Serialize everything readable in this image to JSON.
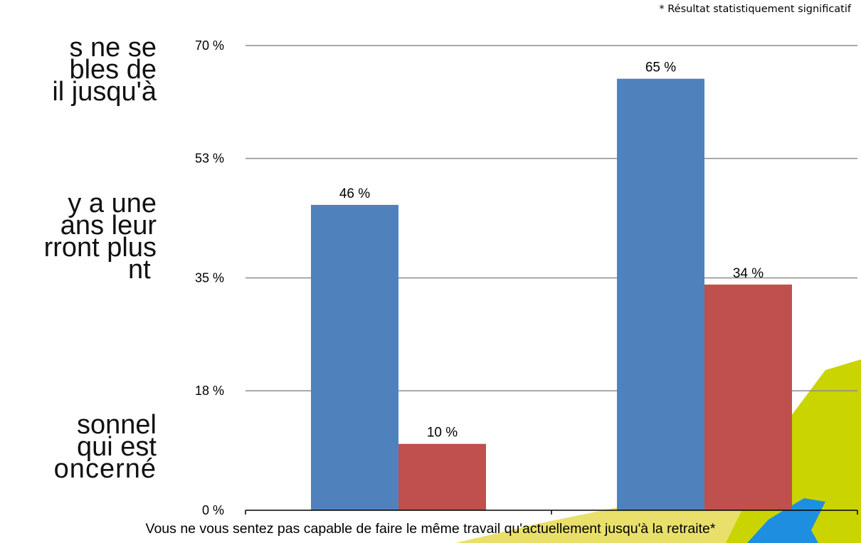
{
  "note": "* Résultat statistiquement significatif",
  "left_text_lines": [
    "s ne se",
    "bles de",
    "il jusqu'à",
    "y a une",
    "ans leur",
    "rront plus",
    "nt",
    "sonnel",
    "qui est",
    "oncerné"
  ],
  "colors": {
    "series1": "#4f81bd",
    "series2": "#c0504d",
    "grid": "#8c8c8c",
    "deco_green": "#c9d400",
    "deco_yellow": "#e8e06a",
    "deco_blue": "#1e8fe0"
  },
  "chart_data": {
    "type": "bar",
    "categories": [
      "Vous ne vous sentez pas capable de faire le même travail qu'actuellement jusqu'à la retraite*",
      ""
    ],
    "series": [
      {
        "values": [
          46,
          65
        ]
      },
      {
        "values": [
          10,
          34
        ]
      }
    ],
    "data_labels": [
      [
        "46 %",
        "65 %"
      ],
      [
        "10 %",
        "34 %"
      ]
    ],
    "y_ticks": [
      0,
      18,
      35,
      53,
      70
    ],
    "y_tick_labels": [
      "0 %",
      "18 %",
      "35 %",
      "53 %",
      "70 %"
    ],
    "ylim": [
      0,
      70
    ],
    "grid": true,
    "legend": "none",
    "xlabel": "",
    "ylabel": "",
    "title": ""
  }
}
